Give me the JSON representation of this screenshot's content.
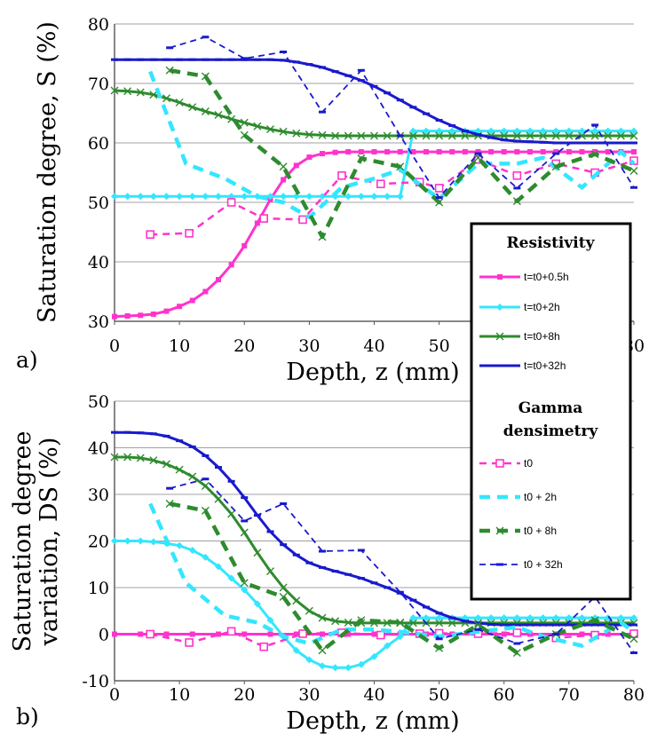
{
  "chart_data": [
    {
      "type": "line",
      "panel_label": "a)",
      "xlabel": "Depth, z (mm)",
      "ylabel": "Saturation degree, S (%)",
      "xlim": [
        0,
        80
      ],
      "ylim": [
        30,
        80
      ],
      "xticks": [
        "0",
        "10",
        "20",
        "30",
        "40",
        "50",
        "60",
        "70",
        "80"
      ],
      "yticks": [
        "30",
        "40",
        "50",
        "60",
        "70",
        "80"
      ],
      "grid": "horizontal",
      "series": [
        {
          "name": "t=t0+0.5h",
          "group": "resistivity",
          "color": "#ff33cc",
          "style": "solid",
          "marker": "square-filled",
          "x": [
            0,
            2,
            4,
            6,
            8,
            10,
            12,
            14,
            16,
            18,
            20,
            22,
            24,
            26,
            28,
            30,
            32,
            34,
            36,
            38,
            40,
            42,
            44,
            46,
            48,
            50,
            52,
            54,
            56,
            58,
            60,
            62,
            64,
            66,
            68,
            70,
            72,
            74,
            76,
            78,
            80
          ],
          "y": [
            30.8,
            30.9,
            31.0,
            31.2,
            31.7,
            32.5,
            33.5,
            35.0,
            37.0,
            39.5,
            42.7,
            46.5,
            50.5,
            53.8,
            56.2,
            57.6,
            58.2,
            58.4,
            58.5,
            58.5,
            58.5,
            58.5,
            58.5,
            58.5,
            58.5,
            58.5,
            58.5,
            58.5,
            58.5,
            58.5,
            58.5,
            58.5,
            58.5,
            58.5,
            58.5,
            58.5,
            58.5,
            58.5,
            58.5,
            58.5,
            58.5
          ]
        },
        {
          "name": "t=t0+2h",
          "group": "resistivity",
          "color": "#33e6ff",
          "style": "solid",
          "marker": "diamond",
          "x": [
            0,
            2,
            4,
            6,
            8,
            10,
            12,
            14,
            16,
            18,
            20,
            22,
            24,
            26,
            28,
            30,
            32,
            34,
            36,
            38,
            40,
            42,
            44,
            46,
            48,
            50,
            52,
            54,
            56,
            58,
            60,
            62,
            64,
            66,
            68,
            70,
            72,
            74,
            76,
            78,
            80
          ],
          "y": [
            51,
            51,
            51,
            51,
            51,
            51,
            51,
            51,
            51,
            51,
            51,
            51,
            51,
            51,
            51,
            51,
            51,
            51,
            51,
            51,
            51,
            51,
            51,
            62,
            62,
            62,
            62,
            62,
            62,
            62,
            62,
            62,
            62,
            62,
            62,
            62,
            62,
            62,
            62,
            62,
            62
          ]
        },
        {
          "name": "t=t0+8h",
          "group": "resistivity",
          "color": "#2e8b2e",
          "style": "solid",
          "marker": "x",
          "x": [
            0,
            2,
            4,
            6,
            8,
            10,
            12,
            14,
            16,
            18,
            20,
            22,
            24,
            26,
            28,
            30,
            32,
            34,
            36,
            38,
            40,
            42,
            44,
            46,
            48,
            50,
            52,
            54,
            56,
            58,
            60,
            62,
            64,
            66,
            68,
            70,
            72,
            74,
            76,
            78,
            80
          ],
          "y": [
            68.8,
            68.7,
            68.5,
            68.1,
            67.5,
            66.8,
            66.0,
            65.3,
            64.7,
            64.0,
            63.4,
            62.8,
            62.3,
            61.9,
            61.6,
            61.4,
            61.3,
            61.2,
            61.2,
            61.2,
            61.2,
            61.2,
            61.2,
            61.2,
            61.2,
            61.2,
            61.2,
            61.2,
            61.2,
            61.2,
            61.2,
            61.2,
            61.2,
            61.2,
            61.2,
            61.2,
            61.2,
            61.2,
            61.2,
            61.2,
            61.2
          ]
        },
        {
          "name": "t=t0+32h",
          "group": "resistivity",
          "color": "#1a1acc",
          "style": "solid",
          "marker": "dash",
          "x": [
            0,
            2,
            4,
            6,
            8,
            10,
            12,
            14,
            16,
            18,
            20,
            22,
            24,
            26,
            28,
            30,
            32,
            34,
            36,
            38,
            40,
            42,
            44,
            46,
            48,
            50,
            52,
            54,
            56,
            58,
            60,
            62,
            64,
            66,
            68,
            70,
            72,
            74,
            76,
            78,
            80
          ],
          "y": [
            74,
            74,
            74,
            74,
            74,
            74,
            74,
            74,
            74,
            74,
            74,
            74,
            74,
            73.9,
            73.6,
            73.2,
            72.7,
            72.0,
            71.3,
            70.5,
            69.5,
            68.4,
            67.2,
            66.0,
            64.9,
            63.8,
            62.9,
            62.0,
            61.4,
            60.9,
            60.5,
            60.3,
            60.2,
            60.1,
            60.0,
            60.0,
            60.0,
            60.0,
            60.0,
            60.0,
            60.0
          ]
        },
        {
          "name": "t0",
          "group": "gamma densimetry",
          "color": "#ff33cc",
          "style": "dashed",
          "marker": "square-open",
          "x": [
            5.5,
            11.5,
            18,
            23,
            29,
            35,
            41,
            47,
            50,
            56,
            62,
            68,
            74,
            80
          ],
          "y": [
            44.6,
            44.8,
            50,
            47.3,
            47.1,
            54.5,
            53.1,
            53.4,
            52.4,
            57.2,
            54.5,
            56.5,
            55,
            57
          ]
        },
        {
          "name": "t0 + 2h",
          "group": "gamma densimetry",
          "color": "#33e6ff",
          "style": "dashed-thick",
          "marker": "none",
          "x": [
            5.5,
            11,
            17,
            22,
            26,
            30,
            35,
            40,
            44,
            50,
            56,
            62,
            66,
            72,
            78,
            80
          ],
          "y": [
            72,
            56.5,
            54,
            51,
            50,
            47.5,
            52.5,
            54,
            55.5,
            50.6,
            56.5,
            56.5,
            57.5,
            52.5,
            58.5,
            56.5
          ]
        },
        {
          "name": "t0 + 8h",
          "group": "gamma densimetry",
          "color": "#2e8b2e",
          "style": "dashed-thick",
          "marker": "x",
          "x": [
            8.5,
            14,
            20,
            26,
            32,
            38,
            44,
            50,
            56,
            62,
            68,
            74,
            80
          ],
          "y": [
            72.2,
            71.2,
            61.3,
            56,
            44.2,
            57.4,
            56,
            50,
            57.5,
            50.2,
            56,
            58.1,
            55.3
          ]
        },
        {
          "name": "t0 + 32h",
          "group": "gamma densimetry",
          "color": "#1a1acc",
          "style": "dashed-thin",
          "marker": "dash",
          "x": [
            8.5,
            14,
            20,
            26,
            32,
            38,
            44,
            50,
            56,
            62,
            68,
            74,
            80
          ],
          "y": [
            76,
            77.8,
            74.2,
            75.3,
            65.2,
            72.2,
            61.2,
            50.8,
            58.2,
            52.4,
            58.2,
            63,
            52.5
          ]
        }
      ]
    },
    {
      "type": "line",
      "panel_label": "b)",
      "xlabel": "Depth, z (mm)",
      "ylabel": [
        "Saturation degree",
        "variation, DS (%)"
      ],
      "xlim": [
        0,
        80
      ],
      "ylim": [
        -10,
        50
      ],
      "xticks": [
        "0",
        "10",
        "20",
        "30",
        "40",
        "50",
        "60",
        "70",
        "80"
      ],
      "yticks": [
        "-10",
        "0",
        "10",
        "20",
        "30",
        "40",
        "50"
      ],
      "grid": "horizontal",
      "series": [
        {
          "name": "t=t0+0.5h",
          "group": "resistivity",
          "color": "#ff33cc",
          "style": "solid",
          "marker": "square-filled",
          "x": [
            0,
            4,
            8,
            12,
            16,
            20,
            24,
            28,
            32,
            36,
            40,
            44,
            48,
            52,
            56,
            60,
            64,
            68,
            72,
            76,
            80
          ],
          "y": [
            0,
            0,
            0,
            0,
            0,
            0,
            0,
            0,
            0,
            0,
            0,
            0,
            0,
            0,
            0,
            0,
            0,
            0,
            0,
            0,
            0
          ]
        },
        {
          "name": "t=t0+2h",
          "group": "resistivity",
          "color": "#33e6ff",
          "style": "solid",
          "marker": "diamond",
          "x": [
            0,
            2,
            4,
            6,
            8,
            10,
            12,
            14,
            16,
            18,
            20,
            22,
            24,
            26,
            28,
            30,
            32,
            34,
            36,
            38,
            40,
            42,
            44,
            46,
            48,
            50,
            52,
            54,
            56,
            58,
            60,
            62,
            64,
            66,
            68,
            70,
            72,
            74,
            76,
            78,
            80
          ],
          "y": [
            20,
            20,
            20,
            19.8,
            19.5,
            19,
            18,
            16.5,
            14.5,
            12,
            9.5,
            6.5,
            3,
            -0.5,
            -3.5,
            -5.5,
            -6.8,
            -7.2,
            -7.2,
            -6.5,
            -4.8,
            -2.5,
            -0.5,
            3.5,
            3.5,
            3.5,
            3.5,
            3.5,
            3.5,
            3.5,
            3.5,
            3.5,
            3.5,
            3.5,
            3.5,
            3.5,
            3.5,
            3.5,
            3.5,
            3.5,
            3.5
          ]
        },
        {
          "name": "t=t0+8h",
          "group": "resistivity",
          "color": "#2e8b2e",
          "style": "solid",
          "marker": "x",
          "x": [
            0,
            2,
            4,
            6,
            8,
            10,
            12,
            14,
            16,
            18,
            20,
            22,
            24,
            26,
            28,
            30,
            32,
            34,
            36,
            38,
            40,
            42,
            44,
            46,
            48,
            50,
            52,
            54,
            56,
            58,
            60,
            62,
            64,
            66,
            68,
            70,
            72,
            74,
            76,
            78,
            80
          ],
          "y": [
            38,
            38,
            37.8,
            37.3,
            36.5,
            35.3,
            33.8,
            31.8,
            29,
            25.8,
            21.8,
            17.5,
            13.5,
            10,
            7.2,
            5,
            3.5,
            2.8,
            2.5,
            2.4,
            2.4,
            2.4,
            2.4,
            2.4,
            2.4,
            2.4,
            2.4,
            2.4,
            2.4,
            2.4,
            2.4,
            2.4,
            2.4,
            2.4,
            2.4,
            2.4,
            2.4,
            2.4,
            2.4,
            2.4,
            2.4
          ]
        },
        {
          "name": "t=t0+32h",
          "group": "resistivity",
          "color": "#1a1acc",
          "style": "solid",
          "marker": "dash",
          "x": [
            0,
            2,
            4,
            6,
            8,
            10,
            12,
            14,
            16,
            18,
            20,
            22,
            24,
            26,
            28,
            30,
            32,
            34,
            36,
            38,
            40,
            42,
            44,
            46,
            48,
            50,
            52,
            54,
            56,
            58,
            60,
            62,
            64,
            66,
            68,
            70,
            72,
            74,
            76,
            78,
            80
          ],
          "y": [
            43.3,
            43.3,
            43.2,
            43,
            42.5,
            41.5,
            40.2,
            38.3,
            35.8,
            32.8,
            29.3,
            25.5,
            22,
            19.2,
            17,
            15.3,
            14.3,
            13.5,
            12.8,
            12,
            11,
            10,
            8.8,
            7.3,
            5.8,
            4.5,
            3.5,
            2.8,
            2.4,
            2.1,
            2,
            2,
            2,
            2,
            2,
            2,
            2,
            2,
            2,
            2,
            2
          ]
        },
        {
          "name": "t0",
          "group": "gamma densimetry",
          "color": "#ff33cc",
          "style": "dashed",
          "marker": "square-open",
          "x": [
            5.5,
            11.5,
            18,
            23,
            29,
            35,
            41,
            47,
            50,
            56,
            62,
            68,
            74,
            80
          ],
          "y": [
            0,
            -1.8,
            0.6,
            -2.7,
            0.1,
            0.3,
            -0.2,
            0.1,
            0.2,
            0.1,
            0.3,
            -0.8,
            -0.2,
            0.1
          ]
        },
        {
          "name": "t0 + 2h",
          "group": "gamma densimetry",
          "color": "#33e6ff",
          "style": "dashed-thick",
          "marker": "none",
          "x": [
            5.5,
            11,
            17,
            22,
            26,
            30,
            35,
            40,
            44,
            50,
            56,
            62,
            66,
            72,
            78,
            80
          ],
          "y": [
            28,
            11,
            4,
            2.5,
            -0.5,
            -2,
            1,
            1,
            0.5,
            -0.5,
            0.5,
            1.5,
            -0.5,
            -2.5,
            2.5,
            0.5
          ]
        },
        {
          "name": "t0 + 8h",
          "group": "gamma densimetry",
          "color": "#2e8b2e",
          "style": "dashed-thick",
          "marker": "x",
          "x": [
            8.5,
            14,
            20,
            26,
            32,
            38,
            44,
            50,
            56,
            62,
            68,
            74,
            80
          ],
          "y": [
            28,
            26.5,
            11,
            8,
            -3.5,
            3,
            2.5,
            -3,
            2,
            -4,
            0,
            3,
            -1
          ]
        },
        {
          "name": "t0 + 32h",
          "group": "gamma densimetry",
          "color": "#1a1acc",
          "style": "dashed-thin",
          "marker": "dash",
          "x": [
            8.5,
            14,
            20,
            26,
            32,
            38,
            44,
            50,
            56,
            62,
            68,
            74,
            80
          ],
          "y": [
            31.3,
            33.3,
            24.3,
            28,
            17.8,
            18,
            9,
            -1,
            1,
            -2,
            0,
            8,
            -4
          ]
        }
      ]
    }
  ],
  "legend": {
    "placement": "right, spanning both panels",
    "group_titles": [
      "Resistivity",
      "Gamma",
      "densimetry"
    ]
  }
}
